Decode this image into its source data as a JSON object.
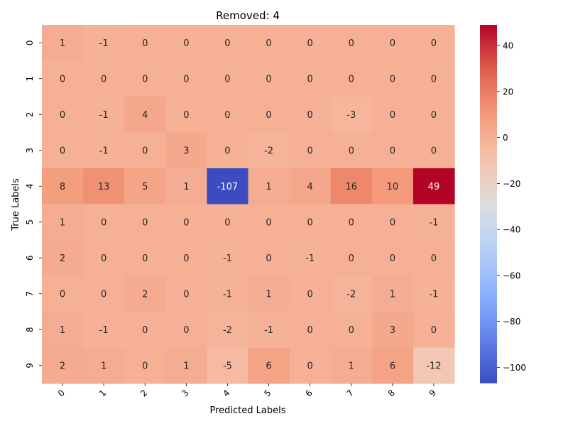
{
  "chart_data": {
    "type": "heatmap",
    "title": "Removed: 4",
    "xlabel": "Predicted Labels",
    "ylabel": "True Labels",
    "x_categories": [
      "0",
      "1",
      "2",
      "3",
      "4",
      "5",
      "6",
      "7",
      "8",
      "9"
    ],
    "y_categories": [
      "0",
      "1",
      "2",
      "3",
      "4",
      "5",
      "6",
      "7",
      "8",
      "9"
    ],
    "values": [
      [
        1,
        -1,
        0,
        0,
        0,
        0,
        0,
        0,
        0,
        0
      ],
      [
        0,
        0,
        0,
        0,
        0,
        0,
        0,
        0,
        0,
        0
      ],
      [
        0,
        -1,
        4,
        0,
        0,
        0,
        0,
        -3,
        0,
        0
      ],
      [
        0,
        -1,
        0,
        3,
        0,
        -2,
        0,
        0,
        0,
        0
      ],
      [
        8,
        13,
        5,
        1,
        -107,
        1,
        4,
        16,
        10,
        49
      ],
      [
        1,
        0,
        0,
        0,
        0,
        0,
        0,
        0,
        0,
        -1
      ],
      [
        2,
        0,
        0,
        0,
        -1,
        0,
        -1,
        0,
        0,
        0
      ],
      [
        0,
        0,
        2,
        0,
        -1,
        1,
        0,
        -2,
        1,
        -1
      ],
      [
        1,
        -1,
        0,
        0,
        -2,
        -1,
        0,
        0,
        3,
        0
      ],
      [
        2,
        1,
        0,
        1,
        -5,
        6,
        0,
        1,
        6,
        -12
      ]
    ],
    "colormap": "coolwarm",
    "vmin": -107,
    "vmax": 49,
    "colorbar_ticks": [
      40,
      20,
      0,
      -20,
      -40,
      -60,
      -80,
      -100
    ],
    "colorbar_tick_labels": [
      "40",
      "20",
      "0",
      "−20",
      "−40",
      "−60",
      "−80",
      "−100"
    ]
  }
}
